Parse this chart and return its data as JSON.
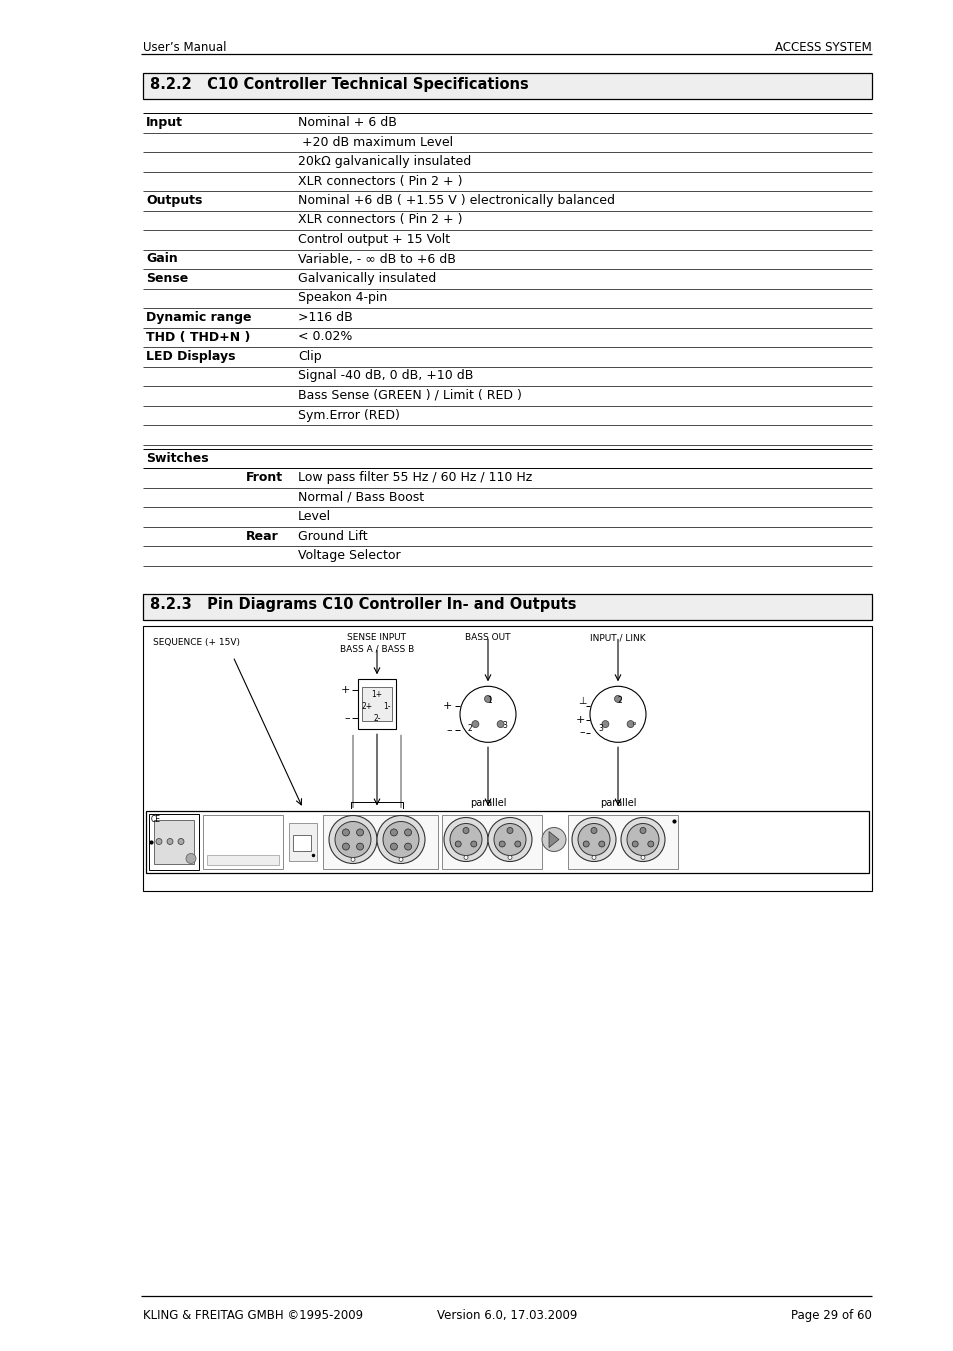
{
  "page_header_left": "User’s Manual",
  "page_header_right": "ACCESS SYSTEM",
  "footer_left": "KLING & FREITAG GMBH ©1995-2009",
  "footer_center": "Version 6.0, 17.03.2009",
  "footer_right": "Page 29 of 60",
  "section1_title": "8.2.2   C10 Controller Technical Specifications",
  "section2_title": "8.2.3   Pin Diagrams C10 Controller In- and Outputs",
  "table_rows": [
    {
      "label": "Input",
      "value": "Nominal + 6 dB"
    },
    {
      "label": "",
      "value": " +20 dB maximum Level"
    },
    {
      "label": "",
      "value": "20kΩ galvanically insulated"
    },
    {
      "label": "",
      "value": "XLR connectors ( Pin 2 + )"
    },
    {
      "label": "Outputs",
      "value": "Nominal +6 dB ( +1.55 V ) electronically balanced"
    },
    {
      "label": "",
      "value": "XLR connectors ( Pin 2 + )"
    },
    {
      "label": "",
      "value": "Control output + 15 Volt"
    },
    {
      "label": "Gain",
      "value": "Variable, - ∞ dB to +6 dB"
    },
    {
      "label": "Sense",
      "value": "Galvanically insulated"
    },
    {
      "label": "",
      "value": "Speakon 4-pin"
    },
    {
      "label": "Dynamic range",
      "value": ">116 dB"
    },
    {
      "label": "THD ( THD+N )",
      "value": "< 0.02%"
    },
    {
      "label": "LED Displays",
      "value": "Clip"
    },
    {
      "label": "",
      "value": "Signal -40 dB, 0 dB, +10 dB"
    },
    {
      "label": "",
      "value": "Bass Sense (GREEN ) / Limit ( RED )"
    },
    {
      "label": "",
      "value": "Sym.Error (RED)"
    }
  ],
  "switch_rows": [
    {
      "label": "Switches",
      "indent": 0,
      "value": ""
    },
    {
      "label": "Front",
      "indent": 2,
      "value": "Low pass filter 55 Hz / 60 Hz / 110 Hz"
    },
    {
      "label": "",
      "indent": 0,
      "value": "Normal / Bass Boost"
    },
    {
      "label": "",
      "indent": 0,
      "value": "Level"
    },
    {
      "label": "Rear",
      "indent": 2,
      "value": "Ground Lift"
    },
    {
      "label": "",
      "indent": 0,
      "value": "Voltage Selector"
    }
  ],
  "bg_color": "#ffffff",
  "section_bg": "#eeeeee"
}
